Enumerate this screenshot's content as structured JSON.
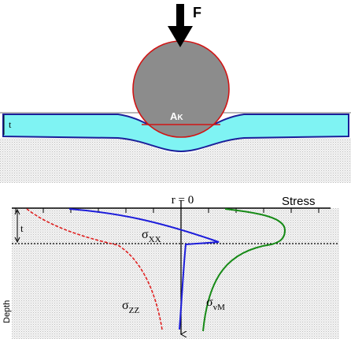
{
  "top": {
    "force_label": "F",
    "contact_area_label": "A",
    "contact_area_subscript": "K",
    "thickness_label": "t"
  },
  "plot": {
    "origin_label": "r = 0",
    "x_axis_label": "Stress",
    "thickness_label": "t",
    "y_axis_label": "Depth",
    "curves": [
      {
        "symbol": "σ",
        "subscript": "XX"
      },
      {
        "symbol": "σ",
        "subscript": "ZZ"
      },
      {
        "symbol": "σ",
        "subscript": "vM"
      }
    ]
  }
}
